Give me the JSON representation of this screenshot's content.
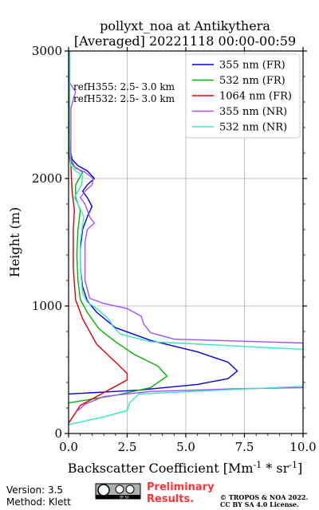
{
  "chart_data": {
    "type": "line",
    "title": "pollyxt_noa at Antikythera",
    "subtitle": "[Averaged] 20221118 00:00-00:59",
    "xlabel": "Backscatter Coefficient [Mm",
    "xlabel_sup": "-1",
    "xlabel_mid": " * sr",
    "xlabel_sup2": "-1",
    "xlabel_end": "]",
    "ylabel": "Height (m)",
    "xlim": [
      0,
      10
    ],
    "ylim": [
      0,
      3000
    ],
    "x_ticks": [
      0,
      2.5,
      5,
      7.5,
      10
    ],
    "x_tick_labels": [
      "0.0",
      "2.5",
      "5.0",
      "7.5",
      "10.0"
    ],
    "y_ticks": [
      0,
      1000,
      2000,
      3000
    ],
    "y_tick_labels": [
      "0",
      "1000",
      "2000",
      "3000"
    ],
    "grid": true,
    "legend_position": "top-right",
    "annotations": [
      "refH355:  2.5- 3.0 km",
      "refH532:  2.5- 3.0 km"
    ],
    "series": [
      {
        "name": "355 nm (FR)",
        "color": "#0000dd",
        "points": [
          [
            0,
            310
          ],
          [
            3,
            340
          ],
          [
            5.5,
            385
          ],
          [
            6.8,
            430
          ],
          [
            7.2,
            490
          ],
          [
            6.8,
            560
          ],
          [
            5.5,
            640
          ],
          [
            3.5,
            730
          ],
          [
            2,
            830
          ],
          [
            1.2,
            950
          ],
          [
            0.8,
            1040
          ],
          [
            0.6,
            1150
          ],
          [
            0.5,
            1300
          ],
          [
            0.5,
            1450
          ],
          [
            0.6,
            1600
          ],
          [
            0.8,
            1700
          ],
          [
            1.0,
            1780
          ],
          [
            0.8,
            1850
          ],
          [
            0.6,
            1900
          ],
          [
            0.8,
            1950
          ],
          [
            1.1,
            2000
          ],
          [
            0.8,
            2060
          ],
          [
            0.4,
            2100
          ],
          [
            0.15,
            2150
          ],
          [
            0.05,
            2250
          ],
          [
            0.03,
            2500
          ],
          [
            0.02,
            3000
          ]
        ]
      },
      {
        "name": "532 nm (FR)",
        "color": "#00b400",
        "points": [
          [
            0,
            240
          ],
          [
            2,
            300
          ],
          [
            3.5,
            360
          ],
          [
            4.2,
            450
          ],
          [
            3.8,
            530
          ],
          [
            2.8,
            620
          ],
          [
            2,
            720
          ],
          [
            1.3,
            820
          ],
          [
            0.8,
            950
          ],
          [
            0.5,
            1050
          ],
          [
            0.4,
            1200
          ],
          [
            0.35,
            1400
          ],
          [
            0.4,
            1600
          ],
          [
            0.5,
            1750
          ],
          [
            0.3,
            1850
          ],
          [
            0.3,
            1950
          ],
          [
            0.6,
            2050
          ],
          [
            0.2,
            2100
          ],
          [
            0.05,
            2150
          ],
          [
            0.02,
            2400
          ],
          [
            0.01,
            3000
          ]
        ]
      },
      {
        "name": "1064 nm (FR)",
        "color": "#dd0000",
        "points": [
          [
            0,
            80
          ],
          [
            0.5,
            220
          ],
          [
            1.5,
            320
          ],
          [
            2.5,
            420
          ],
          [
            2.5,
            470
          ],
          [
            2.0,
            560
          ],
          [
            1.2,
            700
          ],
          [
            0.6,
            900
          ],
          [
            0.3,
            1050
          ],
          [
            0.2,
            1300
          ],
          [
            0.2,
            1600
          ],
          [
            0.25,
            1750
          ],
          [
            0.15,
            1900
          ],
          [
            0.1,
            2100
          ],
          [
            0.02,
            2200
          ],
          [
            0.02,
            3000
          ]
        ]
      },
      {
        "name": "355 nm (NR)",
        "color": "#a64dff",
        "points": [
          [
            0.4,
            180
          ],
          [
            0.7,
            230
          ],
          [
            1.5,
            290
          ],
          [
            3.5,
            330
          ],
          [
            7,
            350
          ],
          [
            10,
            360
          ],
          [
            10,
            710
          ],
          [
            4.5,
            740
          ],
          [
            3.5,
            790
          ],
          [
            3.2,
            860
          ],
          [
            3.1,
            920
          ],
          [
            2.5,
            980
          ],
          [
            1.5,
            1020
          ],
          [
            0.9,
            1060
          ],
          [
            0.7,
            1200
          ],
          [
            0.7,
            1500
          ],
          [
            0.8,
            1600
          ],
          [
            1.1,
            1650
          ],
          [
            0.9,
            1700
          ],
          [
            0.7,
            1800
          ],
          [
            0.5,
            1850
          ],
          [
            0.7,
            1900
          ],
          [
            1.0,
            1950
          ],
          [
            1.05,
            2000
          ],
          [
            0.7,
            2050
          ],
          [
            0.3,
            2080
          ],
          [
            0.1,
            2150
          ],
          [
            0.1,
            2550
          ],
          [
            0.2,
            2620
          ],
          [
            0.3,
            2680
          ],
          [
            0.05,
            2750
          ],
          [
            0.05,
            3000
          ]
        ]
      },
      {
        "name": "532 nm (NR)",
        "color": "#33e8c0",
        "points": [
          [
            0,
            70
          ],
          [
            1.5,
            130
          ],
          [
            2.5,
            180
          ],
          [
            2.6,
            240
          ],
          [
            3,
            310
          ],
          [
            7,
            345
          ],
          [
            10,
            370
          ],
          [
            10,
            660
          ],
          [
            3.5,
            720
          ],
          [
            2.2,
            780
          ],
          [
            1.9,
            840
          ],
          [
            1.7,
            900
          ],
          [
            1.2,
            980
          ],
          [
            0.8,
            1030
          ],
          [
            0.6,
            1100
          ],
          [
            0.5,
            1300
          ],
          [
            0.5,
            1500
          ],
          [
            0.65,
            1700
          ],
          [
            0.4,
            1800
          ],
          [
            0.25,
            1850
          ],
          [
            0.55,
            1950
          ],
          [
            0.6,
            2020
          ],
          [
            0.3,
            2060
          ],
          [
            0.1,
            2100
          ],
          [
            0.05,
            2200
          ],
          [
            0.05,
            3000
          ]
        ]
      }
    ]
  },
  "footer": {
    "version": "Version: 3.5",
    "method": "Method: Klett",
    "preliminary_line1": "Preliminary",
    "preliminary_line2": "Results.",
    "copyright_line1": "© TROPOS & NOA 2022.",
    "copyright_line2": "CC BY SA 4.0 License.",
    "license_badge": "cc-by-sa-badge",
    "license_badge_text": "BY SA"
  }
}
